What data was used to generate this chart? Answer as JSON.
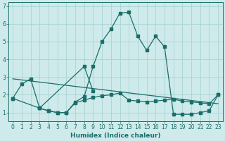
{
  "xlabel": "Humidex (Indice chaleur)",
  "bg_color": "#ceeaea",
  "grid_color": "#aad4d4",
  "line_color": "#1a6e6a",
  "xlim": [
    -0.5,
    23.5
  ],
  "ylim": [
    0.5,
    7.2
  ],
  "xticks": [
    0,
    1,
    2,
    3,
    4,
    5,
    6,
    7,
    8,
    9,
    10,
    11,
    12,
    13,
    14,
    15,
    16,
    17,
    18,
    19,
    20,
    21,
    22,
    23
  ],
  "yticks": [
    1,
    2,
    3,
    4,
    5,
    6,
    7
  ],
  "line1_x": [
    0,
    1,
    2,
    3,
    4,
    5,
    6,
    7,
    8,
    9,
    10,
    11,
    12,
    13,
    14,
    15,
    16,
    17,
    18,
    19,
    20,
    21,
    22,
    23
  ],
  "line1_y": [
    1.8,
    2.6,
    2.9,
    1.25,
    1.1,
    1.0,
    1.0,
    1.6,
    1.9,
    3.6,
    5.0,
    5.7,
    6.6,
    6.65,
    5.3,
    4.5,
    5.3,
    4.7,
    0.9,
    0.9,
    0.9,
    1.0,
    1.1,
    2.0
  ],
  "line2_x": [
    0,
    3,
    4,
    5,
    6,
    7,
    8,
    9,
    10,
    11,
    12,
    13,
    14,
    15,
    16,
    17,
    18,
    19,
    20,
    21,
    22,
    23
  ],
  "line2_y": [
    1.8,
    1.25,
    1.1,
    1.0,
    1.0,
    1.55,
    1.7,
    1.85,
    1.95,
    2.0,
    2.1,
    1.7,
    1.65,
    1.6,
    1.65,
    1.7,
    1.75,
    1.65,
    1.6,
    1.55,
    1.5,
    2.0
  ],
  "line3_x": [
    0,
    23
  ],
  "line3_y": [
    2.9,
    1.5
  ],
  "line4_x": [
    3,
    8,
    9
  ],
  "line4_y": [
    1.25,
    3.6,
    2.2
  ]
}
